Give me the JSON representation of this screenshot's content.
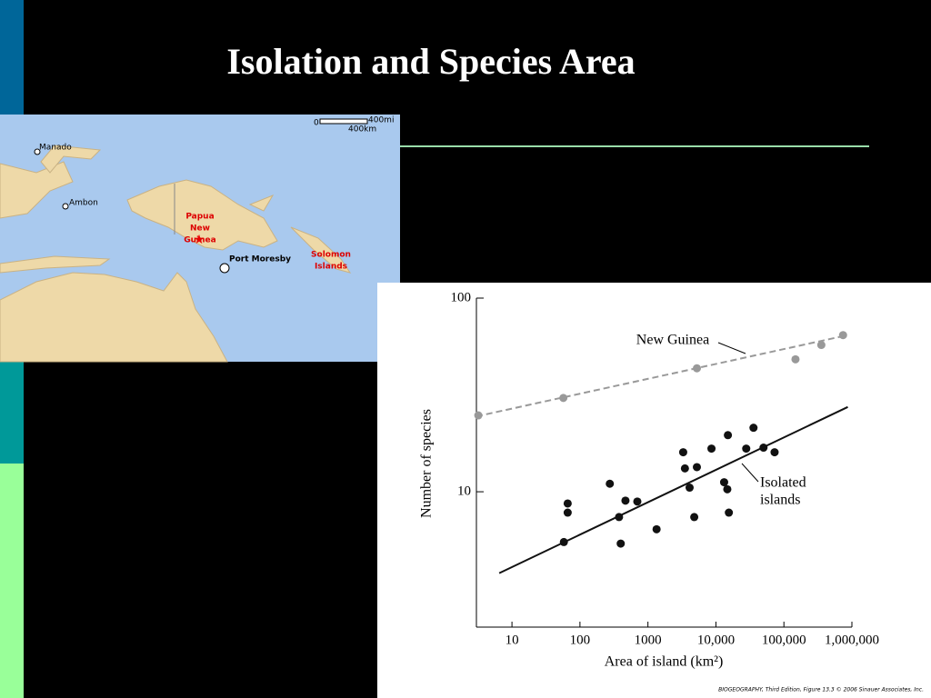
{
  "title": "Isolation and Species Area",
  "map": {
    "scale": {
      "zero": "0",
      "mi": "400mi",
      "km": "400km"
    },
    "places": [
      "Manado",
      "Ambon",
      "Port Moresby"
    ],
    "country": [
      "Papua",
      "New",
      "Guinea"
    ],
    "islands": [
      "Solomon",
      "Islands"
    ]
  },
  "chart_data": {
    "type": "scatter",
    "xlabel": "Area of island (km²)",
    "ylabel": "Number of species",
    "xlog": true,
    "ylog": true,
    "xlim": [
      3,
      1000000
    ],
    "ylim": [
      2,
      100
    ],
    "xticks": [
      10,
      100,
      1000,
      {
        "value": 10000,
        "label": "10,000"
      },
      {
        "value": 100000,
        "label": "100,000"
      },
      {
        "value": 1000000,
        "label": "1,000,000"
      }
    ],
    "yticks": [
      10,
      100
    ],
    "annotations": [
      "New Guinea",
      "Isolated",
      "islands"
    ],
    "credit": "BIOGEOGRAPHY, Third Edition, Figure 13.3 © 2006 Sinauer Associates, Inc.",
    "series": [
      {
        "name": "New Guinea",
        "color": "#999999",
        "dash": true,
        "x": [
          3.2,
          57,
          5250,
          148000,
          355000,
          741000
        ],
        "values": [
          24.8,
          30.5,
          43.4,
          48.3,
          57.3,
          64.4
        ],
        "fit": {
          "x": [
            3,
            800000
          ],
          "values": [
            24.5,
            64
          ]
        }
      },
      {
        "name": "Isolated islands",
        "color": "#111111",
        "dash": false,
        "x": [
          58,
          66,
          66,
          275,
          376,
          398,
          467,
          698,
          1340,
          3300,
          3500,
          4100,
          4800,
          5250,
          8600,
          13200,
          15000,
          14700,
          15500,
          27900,
          35700,
          50100,
          72900
        ],
        "values": [
          5.5,
          8.7,
          7.8,
          11,
          7.4,
          5.4,
          9.0,
          8.9,
          6.4,
          16,
          13.2,
          10.5,
          7.4,
          13.4,
          16.7,
          11.2,
          19.6,
          10.3,
          7.8,
          16.7,
          21.4,
          16.9,
          16
        ],
        "fit": {
          "x": [
            6.5,
            870000
          ],
          "values": [
            3.8,
            27.4
          ]
        }
      }
    ]
  }
}
